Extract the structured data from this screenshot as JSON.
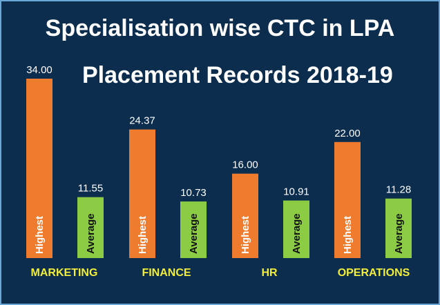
{
  "header": {
    "title": "Specialisation wise CTC in LPA",
    "subtitle": "Placement Records 2018-19"
  },
  "colors": {
    "background": "#0c2d4e",
    "highest": "#ef7b2f",
    "average": "#8ccc45",
    "category_label": "#f2ee3a"
  },
  "chart_data": {
    "type": "bar",
    "title": "Specialisation wise CTC in LPA",
    "subtitle": "Placement Records 2018-19",
    "categories": [
      "MARKETING",
      "FINANCE",
      "HR",
      "OPERATIONS"
    ],
    "series": [
      {
        "name": "Highest",
        "values": [
          34.0,
          24.37,
          16.0,
          22.0
        ]
      },
      {
        "name": "Average",
        "values": [
          11.55,
          10.73,
          10.91,
          11.28
        ]
      }
    ],
    "value_labels": {
      "Highest": [
        "34.00",
        "24.37",
        "16.00",
        "22.00"
      ],
      "Average": [
        "11.55",
        "10.73",
        "10.91",
        "11.28"
      ]
    },
    "ylim": [
      0,
      34
    ],
    "xlabel": "",
    "ylabel": "",
    "grid": false,
    "legend": "none"
  }
}
